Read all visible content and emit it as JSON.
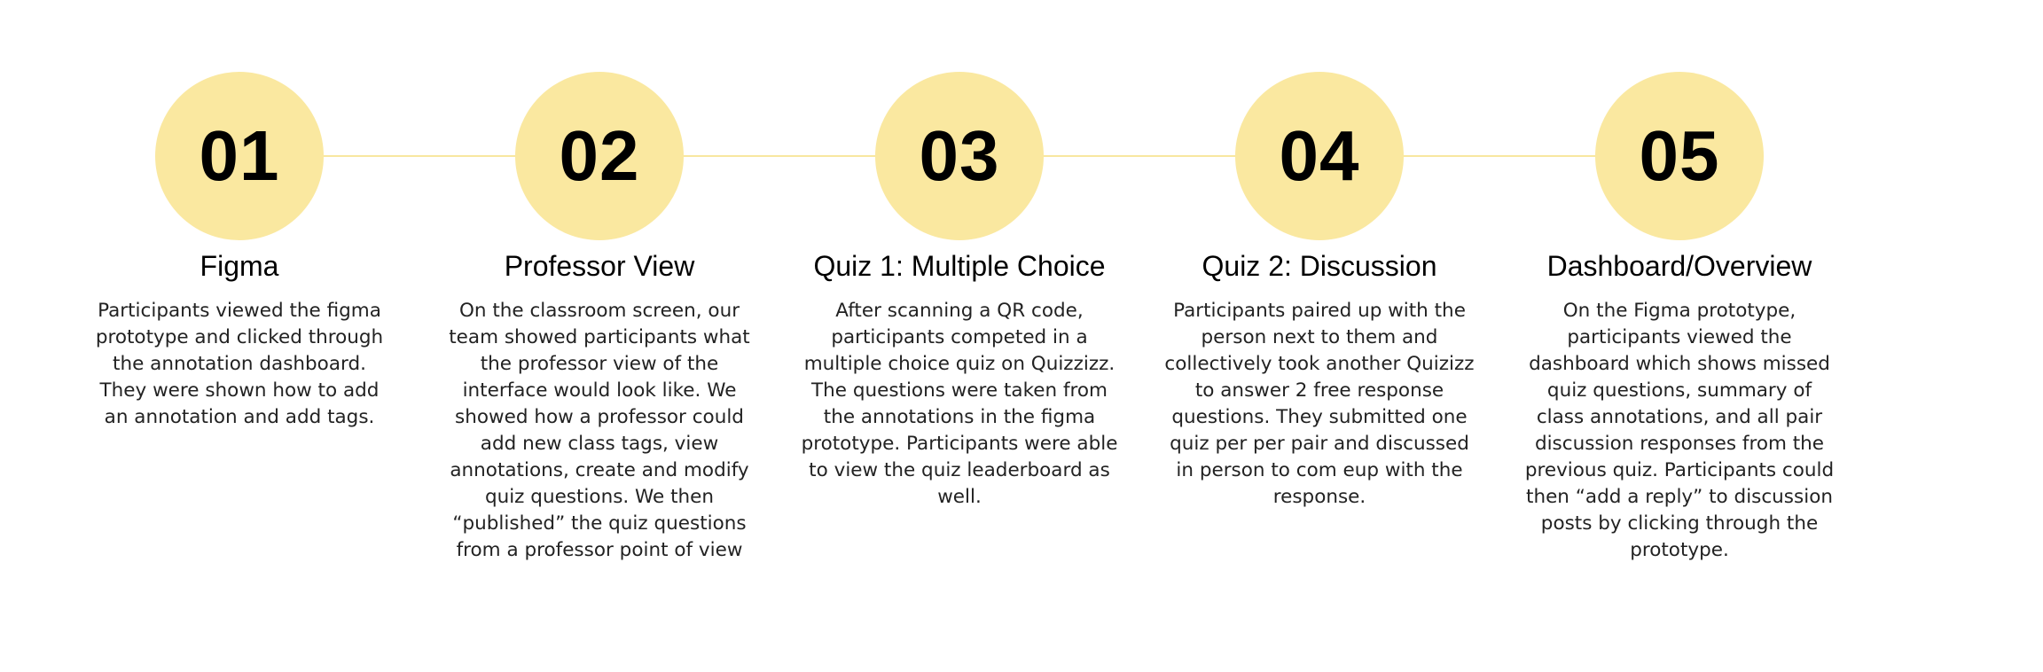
{
  "steps": [
    {
      "number": "01",
      "title": "Figma",
      "description": "Participants viewed the figma prototype and clicked through the annotation dashboard. They were shown how to add an annotation and add tags."
    },
    {
      "number": "02",
      "title": "Professor View",
      "description": "On the classroom screen, our team showed participants what the professor view of the interface would look like. We showed how a professor could add new class tags, view annotations, create and modify quiz questions. We then “published” the quiz questions from a professor point of view"
    },
    {
      "number": "03",
      "title": "Quiz 1: Multiple Choice",
      "description": "After scanning a QR code, participants competed in a multiple choice quiz on Quizzizz. The questions were taken from the annotations in the figma prototype. Participants were able to view the quiz leaderboard as well."
    },
    {
      "number": "04",
      "title": "Quiz 2: Discussion",
      "description": "Participants paired up with the person next to them and collectively took another Quizizz to answer 2 free response questions. They submitted one quiz per per pair and discussed in person to com eup with the response."
    },
    {
      "number": "05",
      "title": "Dashboard/Overview",
      "description": "On the Figma prototype, participants viewed the dashboard which shows missed quiz questions, summary of class annotations, and all pair discussion responses from the previous quiz. Participants could then “add a reply” to discussion posts by clicking through the prototype."
    }
  ],
  "colors": {
    "circle": "#fae8a0",
    "connector": "#f8e7a0",
    "text": "#000000"
  }
}
